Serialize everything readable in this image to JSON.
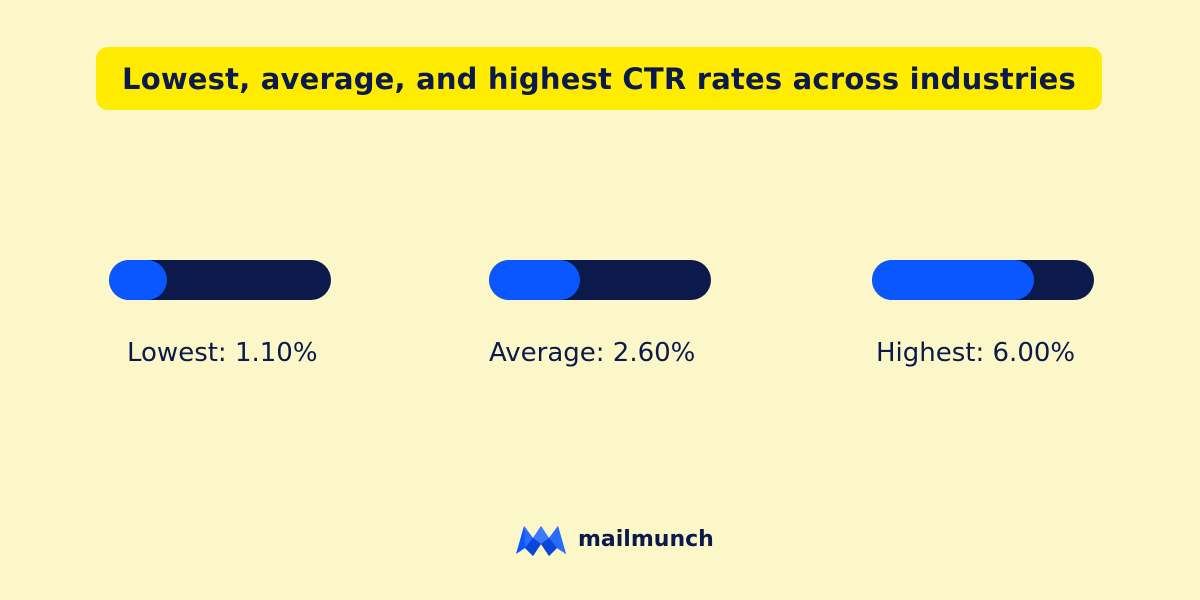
{
  "title": "Lowest, average, and highest CTR rates across industries",
  "chart_data": {
    "type": "bar",
    "title": "Lowest, average, and highest CTR rates across industries",
    "categories": [
      "Lowest",
      "Average",
      "Highest"
    ],
    "values": [
      1.1,
      2.6,
      6.0
    ],
    "value_labels": [
      "Lowest: 1.10%",
      "Average: 2.60%",
      "Highest: 6.00%"
    ],
    "series_fill_fraction": [
      0.26,
      0.41,
      0.73
    ]
  },
  "brand": {
    "name": "mailmunch",
    "logo_icon": "mailmunch-logo-icon"
  },
  "colors": {
    "background": "#fbf7c8",
    "banner": "#ffec00",
    "text": "#0b1a4a",
    "track": "#0b1a4a",
    "fill": "#0a56ff"
  }
}
